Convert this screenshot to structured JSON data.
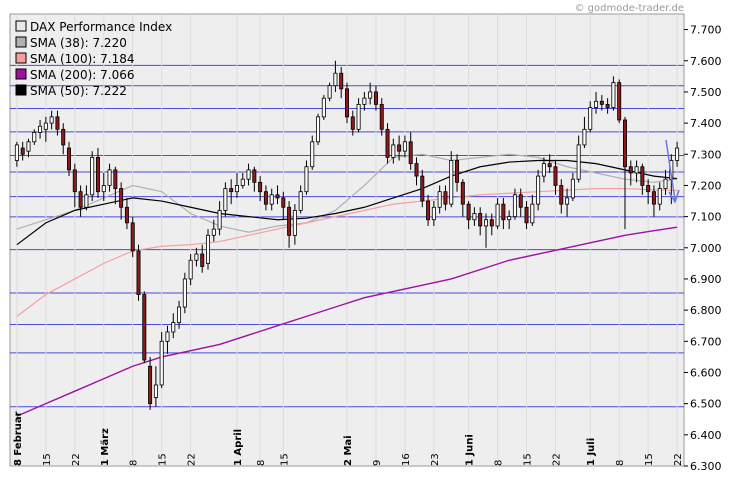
{
  "watermark": "© godmode-trader.de",
  "colors": {
    "plot_bg": "#eeeeee",
    "grid": "#4a4ad8",
    "bull_body": "#ffffff",
    "bear_body": "#8b1a1a",
    "sma38": "#b0b0b0",
    "sma100": "#f4a0a0",
    "sma200": "#a010a0",
    "sma50": "#000000",
    "arrow": "#6a7ae0"
  },
  "chart_data": {
    "type": "candlestick",
    "title": "",
    "ylim": [
      6300,
      7750
    ],
    "y_ticks": [
      "7.700",
      "7.600",
      "7.500",
      "7.400",
      "7.300",
      "7.200",
      "7.100",
      "7.000",
      "6.900",
      "6.800",
      "6.700",
      "6.600",
      "6.500",
      "6.400",
      "6.300"
    ],
    "legend": [
      {
        "label": "DAX Performance Index",
        "swatch": "#e8e8e8"
      },
      {
        "label": "SMA (38): 7.220",
        "swatch": "#b0b0b0"
      },
      {
        "label": "SMA (100): 7.184",
        "swatch": "#f4a0a0"
      },
      {
        "label": "SMA (200): 7.066",
        "swatch": "#a010a0"
      },
      {
        "label": "SMA (50): 7.222",
        "swatch": "#000000"
      }
    ],
    "x_ticks": [
      {
        "label": "8 Februar",
        "i": 0,
        "bold": true
      },
      {
        "label": "15",
        "i": 5
      },
      {
        "label": "22",
        "i": 10
      },
      {
        "label": "1 März",
        "i": 15,
        "bold": true
      },
      {
        "label": "8",
        "i": 20
      },
      {
        "label": "15",
        "i": 25
      },
      {
        "label": "22",
        "i": 30
      },
      {
        "label": "1 April",
        "i": 38,
        "bold": true
      },
      {
        "label": "8",
        "i": 42
      },
      {
        "label": "15",
        "i": 46
      },
      {
        "label": "2 Mai",
        "i": 57,
        "bold": true
      },
      {
        "label": "9",
        "i": 62
      },
      {
        "label": "16",
        "i": 67
      },
      {
        "label": "23",
        "i": 72
      },
      {
        "label": "1 Juni",
        "i": 78,
        "bold": true
      },
      {
        "label": "8",
        "i": 83
      },
      {
        "label": "15",
        "i": 88
      },
      {
        "label": "22",
        "i": 93
      },
      {
        "label": "1 Juli",
        "i": 99,
        "bold": true
      },
      {
        "label": "8",
        "i": 104
      },
      {
        "label": "15",
        "i": 109
      },
      {
        "label": "22",
        "i": 114
      }
    ],
    "h_lines": [
      7585,
      7520,
      7447,
      7372,
      7296,
      7243,
      7164,
      7099,
      6994,
      6855,
      6754,
      6663,
      6490
    ],
    "candles": [
      [
        7280,
        7330,
        7340,
        7260
      ],
      [
        7320,
        7300,
        7340,
        7280
      ],
      [
        7310,
        7340,
        7350,
        7290
      ],
      [
        7340,
        7370,
        7380,
        7330
      ],
      [
        7370,
        7390,
        7410,
        7350
      ],
      [
        7380,
        7400,
        7420,
        7340
      ],
      [
        7400,
        7420,
        7440,
        7380
      ],
      [
        7420,
        7380,
        7440,
        7360
      ],
      [
        7380,
        7330,
        7400,
        7300
      ],
      [
        7320,
        7250,
        7340,
        7230
      ],
      [
        7250,
        7180,
        7270,
        7130
      ],
      [
        7180,
        7130,
        7200,
        7100
      ],
      [
        7130,
        7170,
        7200,
        7120
      ],
      [
        7170,
        7290,
        7310,
        7150
      ],
      [
        7290,
        7180,
        7320,
        7160
      ],
      [
        7180,
        7200,
        7240,
        7150
      ],
      [
        7200,
        7250,
        7270,
        7180
      ],
      [
        7250,
        7190,
        7260,
        7140
      ],
      [
        7190,
        7130,
        7210,
        7090
      ],
      [
        7130,
        7080,
        7160,
        7060
      ],
      [
        7080,
        6990,
        7100,
        6970
      ],
      [
        6990,
        6850,
        7010,
        6830
      ],
      [
        6850,
        6640,
        6860,
        6630
      ],
      [
        6620,
        6500,
        6650,
        6480
      ],
      [
        6520,
        6560,
        6620,
        6490
      ],
      [
        6560,
        6700,
        6730,
        6550
      ],
      [
        6700,
        6730,
        6750,
        6660
      ],
      [
        6730,
        6760,
        6790,
        6710
      ],
      [
        6760,
        6810,
        6830,
        6740
      ],
      [
        6810,
        6900,
        6920,
        6790
      ],
      [
        6900,
        6960,
        6980,
        6880
      ],
      [
        6960,
        6980,
        7000,
        6940
      ],
      [
        6980,
        6940,
        7010,
        6920
      ],
      [
        6950,
        7040,
        7060,
        6930
      ],
      [
        7040,
        7060,
        7090,
        7020
      ],
      [
        7060,
        7120,
        7150,
        7040
      ],
      [
        7120,
        7190,
        7210,
        7100
      ],
      [
        7190,
        7180,
        7220,
        7140
      ],
      [
        7180,
        7200,
        7240,
        7160
      ],
      [
        7200,
        7220,
        7240,
        7190
      ],
      [
        7220,
        7250,
        7270,
        7200
      ],
      [
        7250,
        7210,
        7260,
        7180
      ],
      [
        7210,
        7180,
        7230,
        7150
      ],
      [
        7180,
        7140,
        7200,
        7120
      ],
      [
        7140,
        7170,
        7190,
        7120
      ],
      [
        7170,
        7160,
        7200,
        7140
      ],
      [
        7160,
        7130,
        7180,
        7090
      ],
      [
        7130,
        7040,
        7150,
        7000
      ],
      [
        7040,
        7120,
        7140,
        7010
      ],
      [
        7120,
        7180,
        7200,
        7110
      ],
      [
        7180,
        7260,
        7280,
        7170
      ],
      [
        7260,
        7340,
        7360,
        7250
      ],
      [
        7340,
        7420,
        7430,
        7330
      ],
      [
        7420,
        7480,
        7490,
        7410
      ],
      [
        7480,
        7520,
        7530,
        7470
      ],
      [
        7520,
        7560,
        7600,
        7500
      ],
      [
        7560,
        7510,
        7580,
        7480
      ],
      [
        7510,
        7420,
        7530,
        7400
      ],
      [
        7420,
        7380,
        7440,
        7360
      ],
      [
        7380,
        7460,
        7480,
        7370
      ],
      [
        7460,
        7480,
        7500,
        7440
      ],
      [
        7480,
        7500,
        7530,
        7460
      ],
      [
        7500,
        7460,
        7520,
        7440
      ],
      [
        7460,
        7380,
        7480,
        7360
      ],
      [
        7380,
        7290,
        7400,
        7270
      ],
      [
        7290,
        7330,
        7350,
        7270
      ],
      [
        7330,
        7310,
        7360,
        7280
      ],
      [
        7310,
        7340,
        7360,
        7290
      ],
      [
        7340,
        7270,
        7370,
        7250
      ],
      [
        7270,
        7230,
        7290,
        7200
      ],
      [
        7230,
        7150,
        7250,
        7130
      ],
      [
        7150,
        7090,
        7170,
        7070
      ],
      [
        7090,
        7130,
        7150,
        7070
      ],
      [
        7130,
        7180,
        7200,
        7110
      ],
      [
        7180,
        7140,
        7200,
        7120
      ],
      [
        7140,
        7280,
        7310,
        7130
      ],
      [
        7280,
        7210,
        7300,
        7180
      ],
      [
        7210,
        7140,
        7220,
        7100
      ],
      [
        7140,
        7090,
        7150,
        7060
      ],
      [
        7090,
        7110,
        7130,
        7070
      ],
      [
        7110,
        7070,
        7130,
        7040
      ],
      [
        7070,
        7090,
        7110,
        7000
      ],
      [
        7090,
        7070,
        7110,
        7040
      ],
      [
        7070,
        7140,
        7160,
        7060
      ],
      [
        7140,
        7090,
        7160,
        7060
      ],
      [
        7090,
        7100,
        7120,
        7060
      ],
      [
        7100,
        7170,
        7190,
        7090
      ],
      [
        7170,
        7130,
        7190,
        7100
      ],
      [
        7130,
        7080,
        7150,
        7060
      ],
      [
        7080,
        7140,
        7170,
        7070
      ],
      [
        7140,
        7230,
        7250,
        7120
      ],
      [
        7230,
        7270,
        7290,
        7210
      ],
      [
        7270,
        7260,
        7300,
        7240
      ],
      [
        7260,
        7200,
        7280,
        7170
      ],
      [
        7200,
        7140,
        7220,
        7110
      ],
      [
        7140,
        7160,
        7190,
        7100
      ],
      [
        7160,
        7220,
        7240,
        7150
      ],
      [
        7220,
        7330,
        7360,
        7210
      ],
      [
        7330,
        7380,
        7420,
        7320
      ],
      [
        7380,
        7450,
        7470,
        7370
      ],
      [
        7450,
        7470,
        7500,
        7430
      ],
      [
        7470,
        7460,
        7490,
        7440
      ],
      [
        7460,
        7450,
        7480,
        7430
      ],
      [
        7450,
        7530,
        7550,
        7440
      ],
      [
        7530,
        7410,
        7540,
        7400
      ],
      [
        7410,
        7260,
        7420,
        7060
      ],
      [
        7260,
        7240,
        7280,
        7200
      ],
      [
        7240,
        7260,
        7280,
        7210
      ],
      [
        7260,
        7200,
        7270,
        7170
      ],
      [
        7200,
        7180,
        7220,
        7140
      ],
      [
        7180,
        7140,
        7200,
        7100
      ],
      [
        7140,
        7190,
        7210,
        7120
      ],
      [
        7190,
        7220,
        7250,
        7170
      ],
      [
        7220,
        7280,
        7300,
        7140
      ],
      [
        7280,
        7320,
        7340,
        7260
      ]
    ],
    "sma38": [
      [
        0,
        7060
      ],
      [
        10,
        7120
      ],
      [
        20,
        7200
      ],
      [
        25,
        7180
      ],
      [
        30,
        7110
      ],
      [
        35,
        7070
      ],
      [
        40,
        7050
      ],
      [
        45,
        7070
      ],
      [
        50,
        7080
      ],
      [
        55,
        7120
      ],
      [
        60,
        7200
      ],
      [
        65,
        7290
      ],
      [
        70,
        7300
      ],
      [
        75,
        7280
      ],
      [
        80,
        7290
      ],
      [
        85,
        7300
      ],
      [
        90,
        7290
      ],
      [
        95,
        7260
      ],
      [
        100,
        7240
      ],
      [
        105,
        7220
      ],
      [
        110,
        7210
      ],
      [
        114,
        7220
      ]
    ],
    "sma50": [
      [
        0,
        7010
      ],
      [
        5,
        7080
      ],
      [
        10,
        7120
      ],
      [
        15,
        7140
      ],
      [
        20,
        7160
      ],
      [
        25,
        7150
      ],
      [
        30,
        7130
      ],
      [
        35,
        7110
      ],
      [
        40,
        7100
      ],
      [
        45,
        7090
      ],
      [
        50,
        7095
      ],
      [
        55,
        7110
      ],
      [
        60,
        7130
      ],
      [
        65,
        7160
      ],
      [
        70,
        7190
      ],
      [
        75,
        7230
      ],
      [
        80,
        7260
      ],
      [
        85,
        7275
      ],
      [
        90,
        7280
      ],
      [
        95,
        7280
      ],
      [
        100,
        7270
      ],
      [
        105,
        7250
      ],
      [
        110,
        7230
      ],
      [
        114,
        7222
      ]
    ],
    "sma100": [
      [
        0,
        6780
      ],
      [
        5,
        6850
      ],
      [
        10,
        6900
      ],
      [
        15,
        6950
      ],
      [
        20,
        6990
      ],
      [
        25,
        7005
      ],
      [
        30,
        7010
      ],
      [
        35,
        7020
      ],
      [
        40,
        7040
      ],
      [
        45,
        7060
      ],
      [
        50,
        7080
      ],
      [
        55,
        7100
      ],
      [
        60,
        7120
      ],
      [
        65,
        7140
      ],
      [
        70,
        7150
      ],
      [
        75,
        7160
      ],
      [
        80,
        7170
      ],
      [
        85,
        7175
      ],
      [
        90,
        7180
      ],
      [
        95,
        7185
      ],
      [
        100,
        7190
      ],
      [
        105,
        7190
      ],
      [
        110,
        7186
      ],
      [
        114,
        7184
      ]
    ],
    "sma200": [
      [
        0,
        6460
      ],
      [
        5,
        6500
      ],
      [
        10,
        6540
      ],
      [
        15,
        6580
      ],
      [
        20,
        6620
      ],
      [
        25,
        6650
      ],
      [
        30,
        6670
      ],
      [
        35,
        6690
      ],
      [
        40,
        6720
      ],
      [
        45,
        6750
      ],
      [
        50,
        6780
      ],
      [
        55,
        6810
      ],
      [
        60,
        6840
      ],
      [
        65,
        6860
      ],
      [
        70,
        6880
      ],
      [
        75,
        6900
      ],
      [
        80,
        6930
      ],
      [
        85,
        6960
      ],
      [
        90,
        6980
      ],
      [
        95,
        7000
      ],
      [
        100,
        7020
      ],
      [
        105,
        7040
      ],
      [
        110,
        7055
      ],
      [
        114,
        7066
      ]
    ]
  }
}
